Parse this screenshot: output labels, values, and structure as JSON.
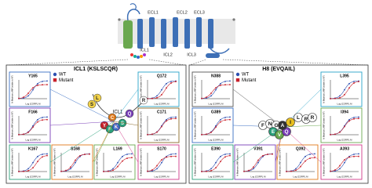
{
  "receptor": {
    "loops": [
      "ECL1",
      "ECL2",
      "ECL3",
      "ICL1",
      "ICL2",
      "ICL3"
    ]
  },
  "left": {
    "title": "ICL1 (KSLSCQR)",
    "legend": [
      "WT",
      "Mutant"
    ],
    "callout": "ICL1",
    "panels": [
      "Y165",
      "F166",
      "K167",
      "S168",
      "L169",
      "S170",
      "C171",
      "Q172"
    ],
    "residues": [
      "Y",
      "F",
      "K",
      "S",
      "L",
      "S",
      "C",
      "Q",
      "R"
    ]
  },
  "right": {
    "title": "H8 (EVQAIL)",
    "legend": [
      "WT",
      "Mutant"
    ],
    "panels": [
      "N388",
      "G389",
      "E390",
      "V391",
      "Q392",
      "A393",
      "I394",
      "L395"
    ],
    "residues": [
      "F",
      "N",
      "G",
      "E",
      "V",
      "Q",
      "A",
      "I",
      "L",
      "R",
      "R"
    ]
  },
  "axes": {
    "x": "Log [CGRP], M",
    "y": "% Maximum cAMP (relative to WT)"
  }
}
